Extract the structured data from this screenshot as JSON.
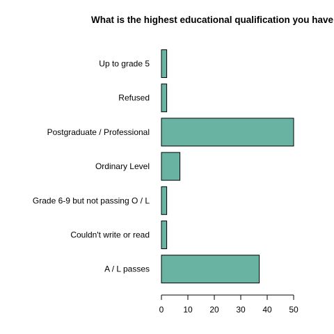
{
  "chart_data": {
    "type": "bar",
    "orientation": "horizontal",
    "title": "What is the highest educational qualification you have",
    "categories": [
      "Up to grade 5",
      "Refused",
      "Postgraduate / Professional",
      "Ordinary Level",
      "Grade 6-9 but not passing O / L",
      "Couldn't write or read",
      "A / L passes"
    ],
    "values": [
      2,
      2,
      50,
      7,
      2,
      2,
      37
    ],
    "xlim": [
      0,
      50
    ],
    "xticks": [
      0,
      10,
      20,
      30,
      40,
      50
    ],
    "bar_color": "#69b3a2",
    "grid": false
  }
}
